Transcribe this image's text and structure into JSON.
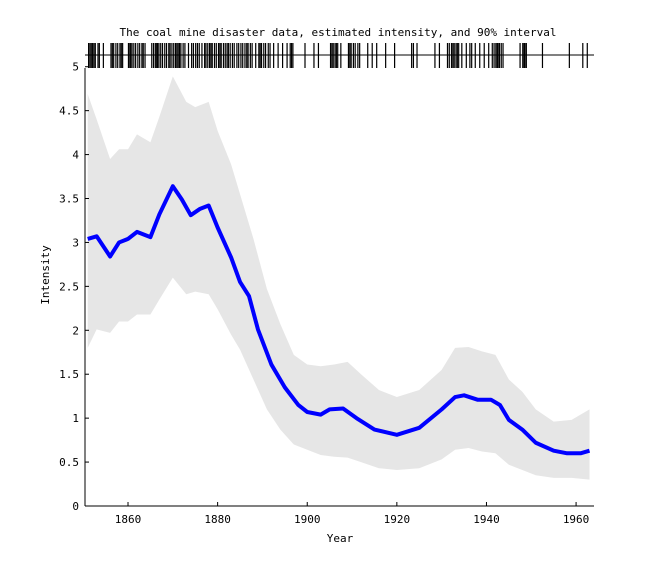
{
  "chart_data": {
    "type": "line",
    "title": "The coal mine disaster data, estimated intensity, and 90% interval",
    "xlabel": "Year",
    "ylabel": "Intensity",
    "xlim": [
      1850.4,
      1964
    ],
    "ylim": [
      0,
      5.27
    ],
    "grid": false,
    "x_ticks": [
      1860,
      1880,
      1900,
      1920,
      1940,
      1960
    ],
    "x_tick_labels": [
      "1860",
      "1880",
      "1900",
      "1920",
      "1940",
      "1960"
    ],
    "y_ticks": [
      0,
      0.5,
      1,
      1.5,
      2,
      2.5,
      3,
      3.5,
      4,
      4.5,
      5
    ],
    "y_tick_labels": [
      "0",
      "0.5",
      "1",
      "1.5",
      "2",
      "2.5",
      "3",
      "3.5",
      "4",
      "4.5",
      "5"
    ],
    "series": [
      {
        "name": "estimated intensity",
        "color": "#0000ff",
        "points": [
          [
            1851,
            3.04
          ],
          [
            1853,
            3.07
          ],
          [
            1856,
            2.84
          ],
          [
            1858,
            3.0
          ],
          [
            1860,
            3.04
          ],
          [
            1862,
            3.12
          ],
          [
            1865,
            3.06
          ],
          [
            1867,
            3.32
          ],
          [
            1870,
            3.64
          ],
          [
            1872,
            3.49
          ],
          [
            1874,
            3.31
          ],
          [
            1876,
            3.38
          ],
          [
            1878,
            3.42
          ],
          [
            1880,
            3.17
          ],
          [
            1883,
            2.83
          ],
          [
            1885,
            2.55
          ],
          [
            1887,
            2.39
          ],
          [
            1889,
            2.01
          ],
          [
            1892,
            1.61
          ],
          [
            1895,
            1.35
          ],
          [
            1898,
            1.15
          ],
          [
            1900,
            1.07
          ],
          [
            1903,
            1.04
          ],
          [
            1905,
            1.1
          ],
          [
            1908,
            1.11
          ],
          [
            1911,
            1.0
          ],
          [
            1915,
            0.87
          ],
          [
            1920,
            0.81
          ],
          [
            1925,
            0.89
          ],
          [
            1930,
            1.1
          ],
          [
            1933,
            1.24
          ],
          [
            1935,
            1.26
          ],
          [
            1938,
            1.21
          ],
          [
            1941,
            1.21
          ],
          [
            1943,
            1.15
          ],
          [
            1945,
            0.98
          ],
          [
            1948,
            0.87
          ],
          [
            1951,
            0.72
          ],
          [
            1955,
            0.63
          ],
          [
            1958,
            0.6
          ],
          [
            1961,
            0.6
          ],
          [
            1963,
            0.63
          ]
        ]
      },
      {
        "name": "90% interval upper",
        "color": "#e6e6e6",
        "points": [
          [
            1851,
            4.69
          ],
          [
            1853,
            4.4
          ],
          [
            1856,
            3.95
          ],
          [
            1858,
            4.06
          ],
          [
            1860,
            4.06
          ],
          [
            1862,
            4.23
          ],
          [
            1865,
            4.14
          ],
          [
            1867,
            4.43
          ],
          [
            1870,
            4.89
          ],
          [
            1873,
            4.6
          ],
          [
            1875,
            4.54
          ],
          [
            1878,
            4.6
          ],
          [
            1880,
            4.27
          ],
          [
            1883,
            3.89
          ],
          [
            1885,
            3.55
          ],
          [
            1888,
            3.04
          ],
          [
            1891,
            2.47
          ],
          [
            1894,
            2.07
          ],
          [
            1897,
            1.72
          ],
          [
            1900,
            1.61
          ],
          [
            1903,
            1.59
          ],
          [
            1906,
            1.61
          ],
          [
            1909,
            1.64
          ],
          [
            1912,
            1.5
          ],
          [
            1916,
            1.32
          ],
          [
            1920,
            1.24
          ],
          [
            1925,
            1.32
          ],
          [
            1930,
            1.55
          ],
          [
            1933,
            1.8
          ],
          [
            1936,
            1.81
          ],
          [
            1939,
            1.76
          ],
          [
            1942,
            1.72
          ],
          [
            1945,
            1.44
          ],
          [
            1948,
            1.3
          ],
          [
            1951,
            1.1
          ],
          [
            1955,
            0.96
          ],
          [
            1959,
            0.98
          ],
          [
            1963,
            1.1
          ]
        ]
      },
      {
        "name": "90% interval lower",
        "color": "#e6e6e6",
        "points": [
          [
            1851,
            1.8
          ],
          [
            1853,
            2.01
          ],
          [
            1856,
            1.97
          ],
          [
            1858,
            2.1
          ],
          [
            1860,
            2.1
          ],
          [
            1862,
            2.18
          ],
          [
            1865,
            2.18
          ],
          [
            1867,
            2.35
          ],
          [
            1870,
            2.6
          ],
          [
            1873,
            2.41
          ],
          [
            1875,
            2.44
          ],
          [
            1878,
            2.41
          ],
          [
            1880,
            2.24
          ],
          [
            1883,
            1.95
          ],
          [
            1885,
            1.78
          ],
          [
            1888,
            1.44
          ],
          [
            1891,
            1.1
          ],
          [
            1894,
            0.87
          ],
          [
            1897,
            0.7
          ],
          [
            1900,
            0.64
          ],
          [
            1903,
            0.58
          ],
          [
            1906,
            0.56
          ],
          [
            1909,
            0.55
          ],
          [
            1912,
            0.5
          ],
          [
            1916,
            0.43
          ],
          [
            1920,
            0.41
          ],
          [
            1925,
            0.43
          ],
          [
            1930,
            0.53
          ],
          [
            1933,
            0.64
          ],
          [
            1936,
            0.66
          ],
          [
            1939,
            0.62
          ],
          [
            1942,
            0.6
          ],
          [
            1945,
            0.47
          ],
          [
            1948,
            0.41
          ],
          [
            1951,
            0.35
          ],
          [
            1955,
            0.32
          ],
          [
            1959,
            0.32
          ],
          [
            1963,
            0.3
          ]
        ]
      }
    ],
    "events": [
      1851.2,
      1851.5,
      1851.8,
      1852.1,
      1852.4,
      1852.7,
      1853.3,
      1853.6,
      1854.5,
      1856.2,
      1856.5,
      1856.8,
      1857.3,
      1857.7,
      1858.2,
      1858.5,
      1858.8,
      1860.1,
      1860.4,
      1860.6,
      1860.9,
      1861.3,
      1861.7,
      1862.2,
      1862.6,
      1863.1,
      1863.4,
      1863.8,
      1865.3,
      1865.7,
      1866.1,
      1866.4,
      1866.6,
      1866.9,
      1867.3,
      1867.7,
      1868.2,
      1868.6,
      1869.1,
      1869.4,
      1869.8,
      1870.2,
      1870.6,
      1870.9,
      1871.2,
      1871.5,
      1871.8,
      1872.3,
      1872.7,
      1873.5,
      1874.2,
      1874.6,
      1875.1,
      1875.5,
      1875.9,
      1876.5,
      1877.1,
      1877.4,
      1877.8,
      1878.2,
      1878.5,
      1878.8,
      1879.3,
      1879.7,
      1880.2,
      1880.5,
      1880.8,
      1881.3,
      1881.7,
      1882.1,
      1882.4,
      1882.8,
      1883.3,
      1883.7,
      1884.3,
      1884.7,
      1885.2,
      1885.6,
      1886.1,
      1886.5,
      1886.8,
      1887.3,
      1887.7,
      1888.5,
      1889.2,
      1889.5,
      1889.8,
      1890.3,
      1890.7,
      1891.3,
      1891.7,
      1892.5,
      1893.5,
      1894.5,
      1895.5,
      1896.2,
      1896.5,
      1896.8,
      1899.5,
      1901.5,
      1902.5,
      1905.2,
      1905.5,
      1905.8,
      1906.2,
      1906.5,
      1906.8,
      1907.5,
      1909.2,
      1909.5,
      1909.8,
      1910.3,
      1910.7,
      1911.3,
      1911.7,
      1913.5,
      1914.5,
      1915.5,
      1917.5,
      1919.5,
      1923.3,
      1923.7,
      1924.5,
      1928.5,
      1929.5,
      1931.3,
      1931.7,
      1932.2,
      1932.5,
      1932.8,
      1933.2,
      1933.5,
      1933.8,
      1934.5,
      1935.5,
      1936.3,
      1936.7,
      1937.5,
      1938.5,
      1939.5,
      1940.5,
      1941.3,
      1941.7,
      1942.1,
      1942.4,
      1942.6,
      1942.9,
      1943.3,
      1943.7,
      1947.5,
      1948.1,
      1948.4,
      1948.6,
      1948.9,
      1952.5,
      1958.5,
      1961.5,
      1962.5
    ]
  }
}
